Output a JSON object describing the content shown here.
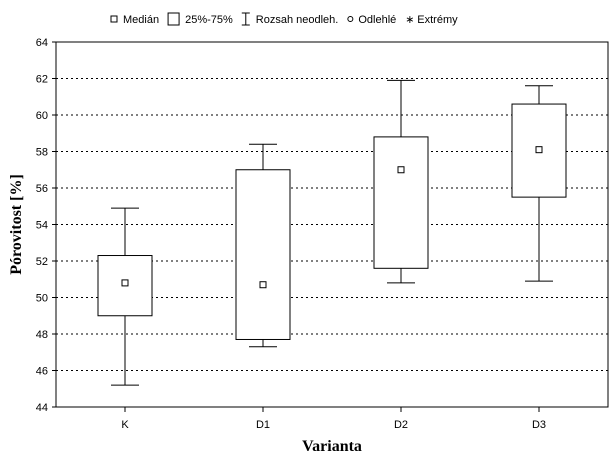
{
  "chart_data": {
    "type": "boxplot",
    "title": "",
    "xlabel": "Varianta",
    "ylabel": "Pórovitost [%]",
    "ylim": [
      44,
      64
    ],
    "yticks": [
      44,
      46,
      48,
      50,
      52,
      54,
      56,
      58,
      60,
      62,
      64
    ],
    "grid": "horizontal",
    "legend_position": "top",
    "legend": [
      {
        "key": "median",
        "label": "Medián",
        "symbol": "small-square"
      },
      {
        "key": "iqr",
        "label": "25%-75%",
        "symbol": "box"
      },
      {
        "key": "range",
        "label": "Rozsah neodleh.",
        "symbol": "whisker"
      },
      {
        "key": "outlier",
        "label": "Odlehlé",
        "symbol": "circle"
      },
      {
        "key": "extreme",
        "label": "Extrémy",
        "symbol": "asterisk"
      }
    ],
    "categories": [
      "K",
      "D1",
      "D2",
      "D3"
    ],
    "boxes": [
      {
        "category": "K",
        "min": 45.2,
        "q1": 49.0,
        "median": 50.8,
        "q3": 52.3,
        "max": 54.9
      },
      {
        "category": "D1",
        "min": 47.3,
        "q1": 47.7,
        "median": 50.7,
        "q3": 57.0,
        "max": 58.4
      },
      {
        "category": "D2",
        "min": 50.8,
        "q1": 51.6,
        "median": 57.0,
        "q3": 58.8,
        "max": 61.9
      },
      {
        "category": "D3",
        "min": 50.9,
        "q1": 55.5,
        "median": 58.1,
        "q3": 60.6,
        "max": 61.6
      }
    ]
  }
}
